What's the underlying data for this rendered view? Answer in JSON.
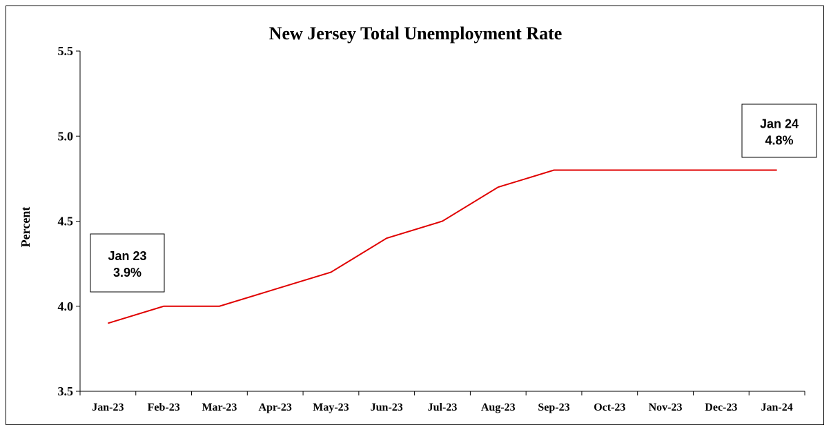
{
  "chart_data": {
    "type": "line",
    "title": "New Jersey Total Unemployment Rate",
    "xlabel": "",
    "ylabel": "Percent",
    "ylim": [
      3.5,
      5.5
    ],
    "yticks": [
      "3.5",
      "4.0",
      "4.5",
      "5.0",
      "5.5"
    ],
    "grid": false,
    "categories": [
      "Jan-23",
      "Feb-23",
      "Mar-23",
      "Apr-23",
      "May-23",
      "Jun-23",
      "Jul-23",
      "Aug-23",
      "Sep-23",
      "Oct-23",
      "Nov-23",
      "Dec-23",
      "Jan-24"
    ],
    "series": [
      {
        "values": [
          3.9,
          4.0,
          4.0,
          4.1,
          4.2,
          4.4,
          4.5,
          4.7,
          4.8,
          4.8,
          4.8,
          4.8,
          4.8
        ],
        "color": "#e00000"
      }
    ],
    "annotations": [
      {
        "line1": "Jan 23",
        "line2": "3.9%",
        "anchor": "first"
      },
      {
        "line1": "Jan 24",
        "line2": "4.8%",
        "anchor": "last"
      }
    ]
  }
}
